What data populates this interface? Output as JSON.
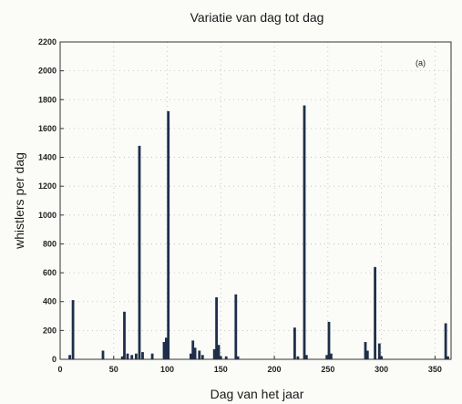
{
  "chart_data": {
    "type": "bar",
    "title": "Variatie van dag tot dag",
    "xlabel": "Dag van het jaar",
    "ylabel": "whistlers per dag",
    "panel_label": "(a)",
    "xlim": [
      0,
      365
    ],
    "ylim": [
      0,
      2200
    ],
    "xticks": [
      0,
      50,
      100,
      150,
      200,
      250,
      300,
      350
    ],
    "yticks": [
      0,
      200,
      400,
      600,
      800,
      1000,
      1200,
      1400,
      1600,
      1800,
      2000,
      2200
    ],
    "grid": true,
    "bar_color": "#1f2f4a",
    "points": [
      {
        "x": 9,
        "y": 30
      },
      {
        "x": 12,
        "y": 410
      },
      {
        "x": 40,
        "y": 60
      },
      {
        "x": 58,
        "y": 20
      },
      {
        "x": 60,
        "y": 330
      },
      {
        "x": 63,
        "y": 40
      },
      {
        "x": 67,
        "y": 30
      },
      {
        "x": 71,
        "y": 40
      },
      {
        "x": 74,
        "y": 1480
      },
      {
        "x": 77,
        "y": 50
      },
      {
        "x": 86,
        "y": 40
      },
      {
        "x": 97,
        "y": 120
      },
      {
        "x": 99,
        "y": 150
      },
      {
        "x": 101,
        "y": 1720
      },
      {
        "x": 122,
        "y": 40
      },
      {
        "x": 124,
        "y": 130
      },
      {
        "x": 126,
        "y": 80
      },
      {
        "x": 130,
        "y": 60
      },
      {
        "x": 133,
        "y": 30
      },
      {
        "x": 144,
        "y": 70
      },
      {
        "x": 146,
        "y": 430
      },
      {
        "x": 148,
        "y": 100
      },
      {
        "x": 150,
        "y": 20
      },
      {
        "x": 155,
        "y": 20
      },
      {
        "x": 164,
        "y": 450
      },
      {
        "x": 166,
        "y": 20
      },
      {
        "x": 219,
        "y": 220
      },
      {
        "x": 222,
        "y": 20
      },
      {
        "x": 228,
        "y": 1760
      },
      {
        "x": 230,
        "y": 30
      },
      {
        "x": 249,
        "y": 30
      },
      {
        "x": 251,
        "y": 260
      },
      {
        "x": 253,
        "y": 40
      },
      {
        "x": 285,
        "y": 120
      },
      {
        "x": 287,
        "y": 60
      },
      {
        "x": 294,
        "y": 640
      },
      {
        "x": 298,
        "y": 110
      },
      {
        "x": 300,
        "y": 20
      },
      {
        "x": 360,
        "y": 250
      },
      {
        "x": 362,
        "y": 20
      }
    ]
  }
}
